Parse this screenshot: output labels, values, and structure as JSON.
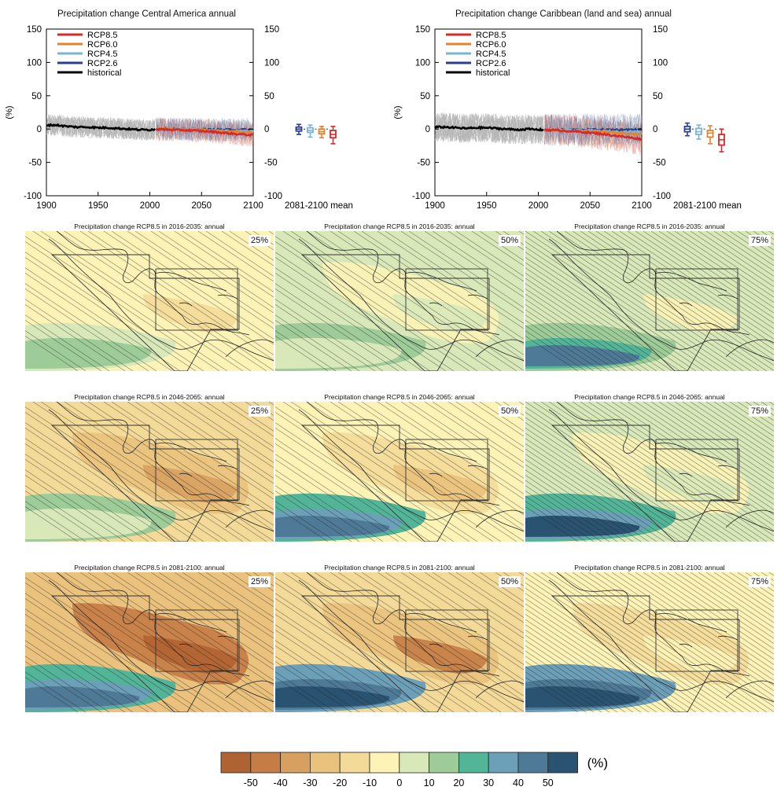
{
  "timeseries": [
    {
      "title": "Precipitation change Central America annual",
      "ylabel": "(%)",
      "legend": [
        "RCP8.5",
        "RCP6.0",
        "RCP4.5",
        "RCP2.6",
        "historical"
      ],
      "x_ticks": [
        "1900",
        "1950",
        "2000",
        "2050",
        "2100"
      ],
      "y_ticks": [
        "150",
        "100",
        "50",
        "0",
        "-50",
        "-100"
      ],
      "box_label": "2081-2100 mean"
    },
    {
      "title": "Precipitation change Caribbean (land and sea) annual",
      "ylabel": "(%)",
      "legend": [
        "RCP8.5",
        "RCP6.0",
        "RCP4.5",
        "RCP2.6",
        "historical"
      ],
      "x_ticks": [
        "1900",
        "1950",
        "2000",
        "2050",
        "2100"
      ],
      "y_ticks": [
        "150",
        "100",
        "50",
        "0",
        "-50",
        "-100"
      ],
      "box_label": "2081-2100 mean"
    }
  ],
  "maps": [
    {
      "title": "Precipitation change RCP8.5 in 2016-2035: annual",
      "pct": "25%"
    },
    {
      "title": "Precipitation change RCP8.5 in 2016-2035: annual",
      "pct": "50%"
    },
    {
      "title": "Precipitation change RCP8.5 in 2016-2035: annual",
      "pct": "75%"
    },
    {
      "title": "Precipitation change RCP8.5 in 2046-2065: annual",
      "pct": "25%"
    },
    {
      "title": "Precipitation change RCP8.5 in 2046-2065: annual",
      "pct": "50%"
    },
    {
      "title": "Precipitation change RCP8.5 in 2046-2065: annual",
      "pct": "75%"
    },
    {
      "title": "Precipitation change RCP8.5 in 2081-2100: annual",
      "pct": "25%"
    },
    {
      "title": "Precipitation change RCP8.5 in 2081-2100: annual",
      "pct": "50%"
    },
    {
      "title": "Precipitation change RCP8.5 in 2081-2100: annual",
      "pct": "75%"
    }
  ],
  "colorbar": {
    "ticks": [
      "-50",
      "-40",
      "-30",
      "-20",
      "-10",
      "0",
      "10",
      "20",
      "30",
      "40",
      "50"
    ],
    "unit": "(%)",
    "colors": [
      "#b06332",
      "#c57c45",
      "#d8a060",
      "#eac27d",
      "#f4da98",
      "#fdf3b6",
      "#d8e8b8",
      "#9dcc98",
      "#53b597",
      "#6c9fb8",
      "#4f7a97",
      "#2a5371"
    ]
  },
  "chart_data": [
    {
      "type": "line",
      "title": "Precipitation change Central America annual",
      "ylabel": "(%)",
      "xlim": [
        1900,
        2100
      ],
      "ylim": [
        -100,
        150
      ],
      "series": [
        {
          "name": "historical",
          "color": "#000000",
          "x": [
            1900,
            1910,
            1920,
            1930,
            1940,
            1950,
            1960,
            1970,
            1980,
            1990,
            2000,
            2005
          ],
          "values": [
            6,
            6,
            4,
            3,
            3,
            2,
            2,
            1,
            0,
            -1,
            -1,
            0
          ]
        },
        {
          "name": "RCP2.6",
          "color": "#2b3f8c",
          "x": [
            2006,
            2020,
            2040,
            2060,
            2080,
            2100
          ],
          "values": [
            0,
            0,
            -1,
            -1,
            -1,
            -1
          ]
        },
        {
          "name": "RCP4.5",
          "color": "#7ab3d6",
          "x": [
            2006,
            2020,
            2040,
            2060,
            2080,
            2100
          ],
          "values": [
            0,
            0,
            -1,
            -2,
            -3,
            -3
          ]
        },
        {
          "name": "RCP6.0",
          "color": "#e8812e",
          "x": [
            2006,
            2020,
            2040,
            2060,
            2080,
            2100
          ],
          "values": [
            0,
            0,
            -1,
            -2,
            -4,
            -5
          ]
        },
        {
          "name": "RCP8.5",
          "color": "#d62a2a",
          "x": [
            2006,
            2020,
            2040,
            2060,
            2080,
            2100
          ],
          "values": [
            0,
            -1,
            -2,
            -4,
            -7,
            -9
          ]
        }
      ],
      "boxes_2081_2100_mean": [
        {
          "name": "RCP2.6",
          "min": -8,
          "q1": -3,
          "median": 0,
          "q3": 3,
          "max": 7
        },
        {
          "name": "RCP4.5",
          "min": -12,
          "q1": -5,
          "median": -2,
          "q3": 2,
          "max": 6
        },
        {
          "name": "RCP6.0",
          "min": -13,
          "q1": -7,
          "median": -4,
          "q3": 0,
          "max": 4
        },
        {
          "name": "RCP8.5",
          "min": -22,
          "q1": -13,
          "median": -8,
          "q3": -2,
          "max": 4
        }
      ]
    },
    {
      "type": "line",
      "title": "Precipitation change Caribbean (land and sea) annual",
      "ylabel": "(%)",
      "xlim": [
        1900,
        2100
      ],
      "ylim": [
        -100,
        150
      ],
      "series": [
        {
          "name": "historical",
          "color": "#000000",
          "x": [
            1900,
            1910,
            1920,
            1930,
            1940,
            1950,
            1960,
            1970,
            1980,
            1990,
            2000,
            2005
          ],
          "values": [
            3,
            3,
            2,
            1,
            2,
            2,
            1,
            0,
            -1,
            0,
            -1,
            -1
          ]
        },
        {
          "name": "RCP2.6",
          "color": "#2b3f8c",
          "x": [
            2006,
            2020,
            2040,
            2060,
            2080,
            2100
          ],
          "values": [
            -1,
            -1,
            -1,
            -1,
            -1,
            -1
          ]
        },
        {
          "name": "RCP4.5",
          "color": "#7ab3d6",
          "x": [
            2006,
            2020,
            2040,
            2060,
            2080,
            2100
          ],
          "values": [
            -1,
            -1,
            -2,
            -3,
            -4,
            -4
          ]
        },
        {
          "name": "RCP6.0",
          "color": "#e8812e",
          "x": [
            2006,
            2020,
            2040,
            2060,
            2080,
            2100
          ],
          "values": [
            -1,
            -2,
            -3,
            -4,
            -6,
            -8
          ]
        },
        {
          "name": "RCP8.5",
          "color": "#d62a2a",
          "x": [
            2006,
            2020,
            2040,
            2060,
            2080,
            2100
          ],
          "values": [
            -1,
            -2,
            -4,
            -7,
            -11,
            -15
          ]
        }
      ],
      "boxes_2081_2100_mean": [
        {
          "name": "RCP2.6",
          "min": -10,
          "q1": -4,
          "median": 0,
          "q3": 4,
          "max": 9
        },
        {
          "name": "RCP4.5",
          "min": -15,
          "q1": -8,
          "median": -4,
          "q3": 1,
          "max": 6
        },
        {
          "name": "RCP6.0",
          "min": -22,
          "q1": -12,
          "median": -6,
          "q3": -2,
          "max": 5
        },
        {
          "name": "RCP8.5",
          "min": -34,
          "q1": -24,
          "median": -16,
          "q3": -8,
          "max": 0
        }
      ]
    }
  ]
}
